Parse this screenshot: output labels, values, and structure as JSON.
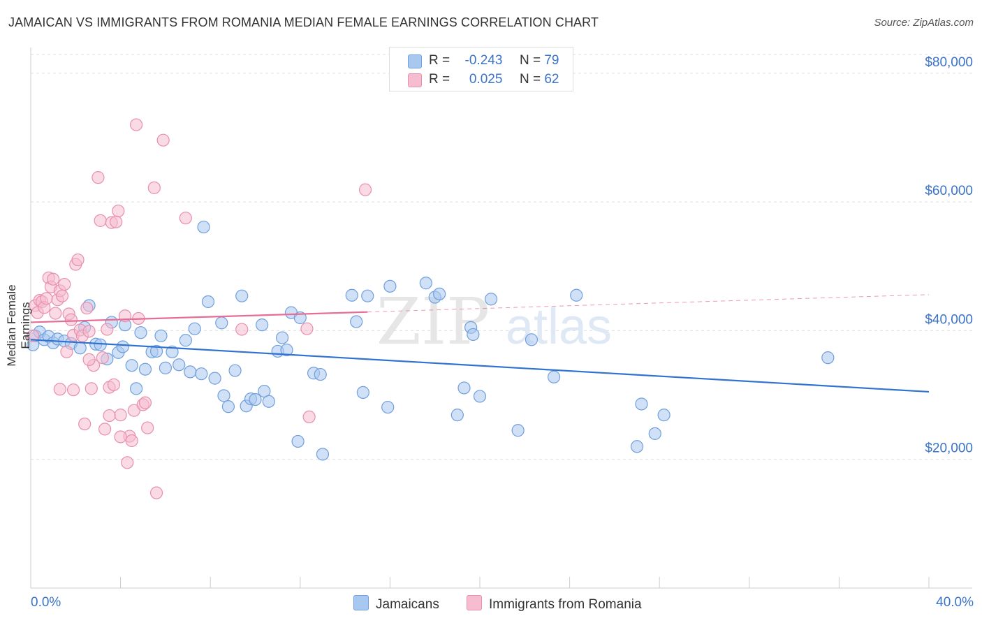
{
  "title": "JAMAICAN VS IMMIGRANTS FROM ROMANIA MEDIAN FEMALE EARNINGS CORRELATION CHART",
  "source": "Source: ZipAtlas.com",
  "watermark": {
    "zip": "ZIP",
    "atlas": "atlas"
  },
  "legend": {
    "r_label": "R =",
    "n_label": "N =",
    "items": [
      {
        "r": "-0.243",
        "n": "79",
        "color": "#a9c8f0"
      },
      {
        "r": "0.025",
        "n": "62",
        "color": "#f6bcd0"
      }
    ]
  },
  "bottom_legend": [
    "Jamaicans",
    "Immigrants from Romania"
  ],
  "colors": {
    "blue_fill": "#a9c8f0",
    "blue_stroke": "#6f9fdc",
    "blue_line": "#2f72d0",
    "pink_fill": "#f6bcd0",
    "pink_stroke": "#e88fae",
    "pink_line": "#e66d95",
    "tick_text": "#3b73c8",
    "grid": "#dddddd"
  },
  "chart_data": {
    "type": "scatter",
    "xlabel": "",
    "ylabel": "Median Female Earnings",
    "xlim": [
      0,
      40
    ],
    "ylim": [
      0,
      84000
    ],
    "x_tick_labels": [
      {
        "value": 0,
        "label": "0.0%"
      },
      {
        "value": 40,
        "label": "40.0%"
      }
    ],
    "x_tick_marks": [
      0,
      4,
      8,
      12,
      16,
      20,
      24,
      28,
      32,
      36,
      40
    ],
    "y_ticks": [
      {
        "value": 20000,
        "label": "$20,000"
      },
      {
        "value": 40000,
        "label": "$40,000"
      },
      {
        "value": 60000,
        "label": "$60,000"
      },
      {
        "value": 80000,
        "label": "$80,000"
      }
    ],
    "grid": "horizontal dashed",
    "legend_position": "top-center",
    "series": [
      {
        "name": "Jamaicans",
        "color": "#a9c8f0",
        "trend": {
          "x0": 0,
          "y0": 38600,
          "x1": 40,
          "y1": 30500
        },
        "points": [
          [
            0.1,
            37800
          ],
          [
            0.2,
            39200
          ],
          [
            0.4,
            39800
          ],
          [
            0.6,
            38600
          ],
          [
            0.8,
            39100
          ],
          [
            1.0,
            38100
          ],
          [
            1.2,
            38700
          ],
          [
            1.5,
            38400
          ],
          [
            1.8,
            38000
          ],
          [
            2.2,
            37300
          ],
          [
            2.4,
            40500
          ],
          [
            2.6,
            43900
          ],
          [
            2.9,
            37900
          ],
          [
            3.1,
            37800
          ],
          [
            3.4,
            35600
          ],
          [
            3.6,
            41300
          ],
          [
            3.9,
            36600
          ],
          [
            4.1,
            37500
          ],
          [
            4.2,
            40900
          ],
          [
            4.5,
            34600
          ],
          [
            4.7,
            31000
          ],
          [
            4.9,
            39700
          ],
          [
            5.1,
            34000
          ],
          [
            5.4,
            36700
          ],
          [
            5.6,
            36800
          ],
          [
            5.8,
            39200
          ],
          [
            6.0,
            34200
          ],
          [
            6.3,
            36700
          ],
          [
            6.6,
            34700
          ],
          [
            6.9,
            38500
          ],
          [
            7.1,
            33600
          ],
          [
            7.3,
            40300
          ],
          [
            7.6,
            33300
          ],
          [
            7.7,
            56100
          ],
          [
            7.9,
            44500
          ],
          [
            8.2,
            32600
          ],
          [
            8.5,
            41200
          ],
          [
            8.6,
            29900
          ],
          [
            8.8,
            28200
          ],
          [
            9.1,
            33800
          ],
          [
            9.4,
            45400
          ],
          [
            9.6,
            28300
          ],
          [
            9.8,
            29400
          ],
          [
            10.0,
            29300
          ],
          [
            10.3,
            40900
          ],
          [
            10.4,
            30600
          ],
          [
            10.6,
            29000
          ],
          [
            11.0,
            36800
          ],
          [
            11.2,
            38900
          ],
          [
            11.4,
            37000
          ],
          [
            11.6,
            42800
          ],
          [
            12.0,
            42000
          ],
          [
            11.9,
            22800
          ],
          [
            12.6,
            33400
          ],
          [
            12.9,
            33200
          ],
          [
            13.0,
            20800
          ],
          [
            14.3,
            45500
          ],
          [
            14.5,
            41400
          ],
          [
            14.8,
            30400
          ],
          [
            15.0,
            45400
          ],
          [
            15.9,
            28100
          ],
          [
            16.0,
            46900
          ],
          [
            17.6,
            47400
          ],
          [
            18.0,
            45200
          ],
          [
            18.2,
            45700
          ],
          [
            19.0,
            26900
          ],
          [
            19.3,
            31100
          ],
          [
            19.6,
            40500
          ],
          [
            19.7,
            39400
          ],
          [
            20.0,
            29800
          ],
          [
            20.5,
            44900
          ],
          [
            21.7,
            24500
          ],
          [
            22.3,
            38600
          ],
          [
            23.3,
            32800
          ],
          [
            24.3,
            45500
          ],
          [
            27.0,
            22000
          ],
          [
            27.2,
            28600
          ],
          [
            27.8,
            24000
          ],
          [
            28.2,
            26900
          ],
          [
            35.5,
            35800
          ]
        ]
      },
      {
        "name": "Immigrants from Romania",
        "color": "#f6bcd0",
        "trend": {
          "x0": 0,
          "y0": 41300,
          "x1": 15,
          "y1": 42900,
          "dashed_to": {
            "x": 40,
            "y": 45600
          }
        },
        "points": [
          [
            0.1,
            39200
          ],
          [
            0.2,
            43900
          ],
          [
            0.3,
            42800
          ],
          [
            0.4,
            44700
          ],
          [
            0.5,
            44500
          ],
          [
            0.6,
            43600
          ],
          [
            0.7,
            45000
          ],
          [
            0.8,
            48200
          ],
          [
            0.9,
            46800
          ],
          [
            1.0,
            48000
          ],
          [
            1.1,
            42700
          ],
          [
            1.2,
            44800
          ],
          [
            1.3,
            46200
          ],
          [
            1.4,
            45400
          ],
          [
            1.5,
            47200
          ],
          [
            1.6,
            36700
          ],
          [
            1.7,
            42600
          ],
          [
            1.8,
            41700
          ],
          [
            1.9,
            39300
          ],
          [
            2.0,
            50300
          ],
          [
            2.1,
            51000
          ],
          [
            2.2,
            40100
          ],
          [
            2.3,
            39200
          ],
          [
            2.4,
            25500
          ],
          [
            2.5,
            43500
          ],
          [
            2.6,
            39900
          ],
          [
            2.7,
            31000
          ],
          [
            2.8,
            34600
          ],
          [
            3.0,
            63800
          ],
          [
            3.1,
            57100
          ],
          [
            3.2,
            35800
          ],
          [
            3.3,
            24700
          ],
          [
            3.4,
            40200
          ],
          [
            3.5,
            31200
          ],
          [
            3.6,
            56800
          ],
          [
            3.7,
            31600
          ],
          [
            3.8,
            56900
          ],
          [
            3.9,
            58600
          ],
          [
            4.0,
            26900
          ],
          [
            4.2,
            42300
          ],
          [
            4.3,
            19500
          ],
          [
            4.4,
            23600
          ],
          [
            4.5,
            22900
          ],
          [
            4.6,
            27600
          ],
          [
            4.7,
            72000
          ],
          [
            4.8,
            41900
          ],
          [
            5.0,
            28500
          ],
          [
            5.1,
            28800
          ],
          [
            5.2,
            24900
          ],
          [
            5.5,
            62200
          ],
          [
            5.6,
            14800
          ],
          [
            5.9,
            69600
          ],
          [
            6.9,
            57500
          ],
          [
            9.4,
            40200
          ],
          [
            12.3,
            40300
          ],
          [
            12.4,
            26600
          ],
          [
            14.9,
            61900
          ],
          [
            1.3,
            30900
          ],
          [
            2.6,
            35500
          ],
          [
            3.5,
            26800
          ],
          [
            4.0,
            23500
          ],
          [
            1.9,
            30800
          ]
        ]
      }
    ]
  }
}
